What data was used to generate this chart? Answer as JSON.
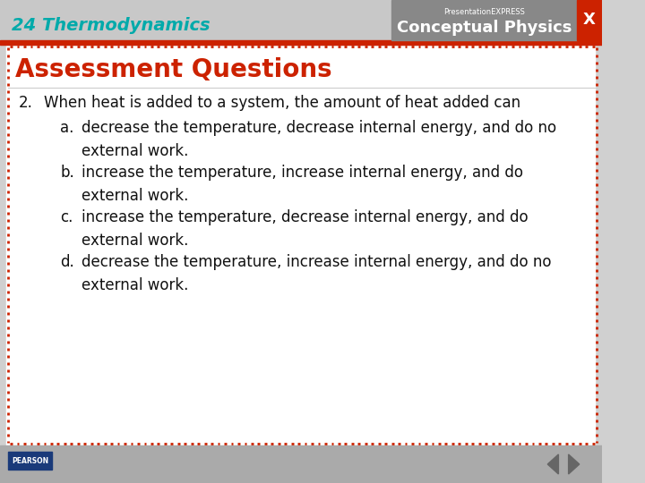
{
  "slide_bg": "#d0d0d0",
  "content_bg": "#ffffff",
  "header_bg": "#c8c8c8",
  "header_text": "24 Thermodynamics",
  "header_text_color": "#00AAAA",
  "header_red_stripe_color": "#cc2200",
  "conceptual_physics_bg": "#888888",
  "conceptual_physics_text": "Conceptual Physics",
  "presentation_express_text": "PresentationEXPRESS",
  "title_text": "Assessment Questions",
  "title_color": "#cc2200",
  "question_number": "2.",
  "question_text": "When heat is added to a system, the amount of heat added can",
  "answer_a_label": "a.",
  "answer_a_text": "decrease the temperature, decrease internal energy, and do no\nexternal work.",
  "answer_b_label": "b.",
  "answer_b_text": "increase the temperature, increase internal energy, and do\nexternal work.",
  "answer_c_label": "c.",
  "answer_c_text": "increase the temperature, decrease internal energy, and do\nexternal work.",
  "answer_d_label": "d.",
  "answer_d_text": "decrease the temperature, increase internal energy, and do no\nexternal work.",
  "body_text_color": "#111111",
  "border_dot_color": "#cc2200",
  "footer_bg": "#aaaaaa",
  "x_button_color": "#cc2200",
  "x_button_text": "X"
}
